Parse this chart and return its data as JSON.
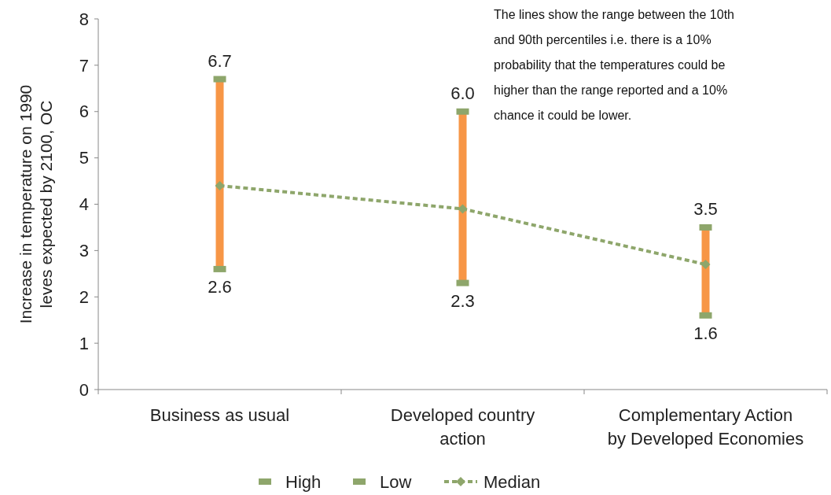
{
  "chart_data": {
    "type": "line",
    "ylabel": "Increase in temperature on 1990 leves expected by 2100, OC",
    "categories": [
      "Business as usual",
      "Developed country action",
      "Complementary Action by Developed Economies"
    ],
    "series": [
      {
        "type": "bar",
        "color": "#f79646",
        "base": [
          2.6,
          2.3,
          1.6
        ],
        "values": [
          4.1,
          3.7,
          1.9
        ]
      },
      {
        "name": "High",
        "type": "scatter",
        "color": "#8ea66b",
        "values": [
          6.7,
          6.0,
          3.5
        ],
        "value_labels": [
          "6.7",
          "6.0",
          "3.5"
        ]
      },
      {
        "name": "Low",
        "type": "scatter",
        "color": "#8ea66b",
        "values": [
          2.6,
          2.3,
          1.6
        ],
        "value_labels": [
          "2.6",
          "2.3",
          "1.6"
        ]
      },
      {
        "name": "Median",
        "color": "#8ea66b",
        "values": [
          4.4,
          3.9,
          2.7
        ],
        "marker": "diamond",
        "line_style": "dashed"
      }
    ],
    "ylim": [
      0,
      8
    ],
    "yticks": [
      0,
      1,
      2,
      3,
      4,
      5,
      6,
      7,
      8
    ],
    "grid": false,
    "legend": "bottom",
    "annotations": [
      "The lines show the range between the 10th and 90th percentiles i.e. there is a 10% probability that the temperatures could be higher than the range reported and a 10% chance it could be lower."
    ]
  }
}
